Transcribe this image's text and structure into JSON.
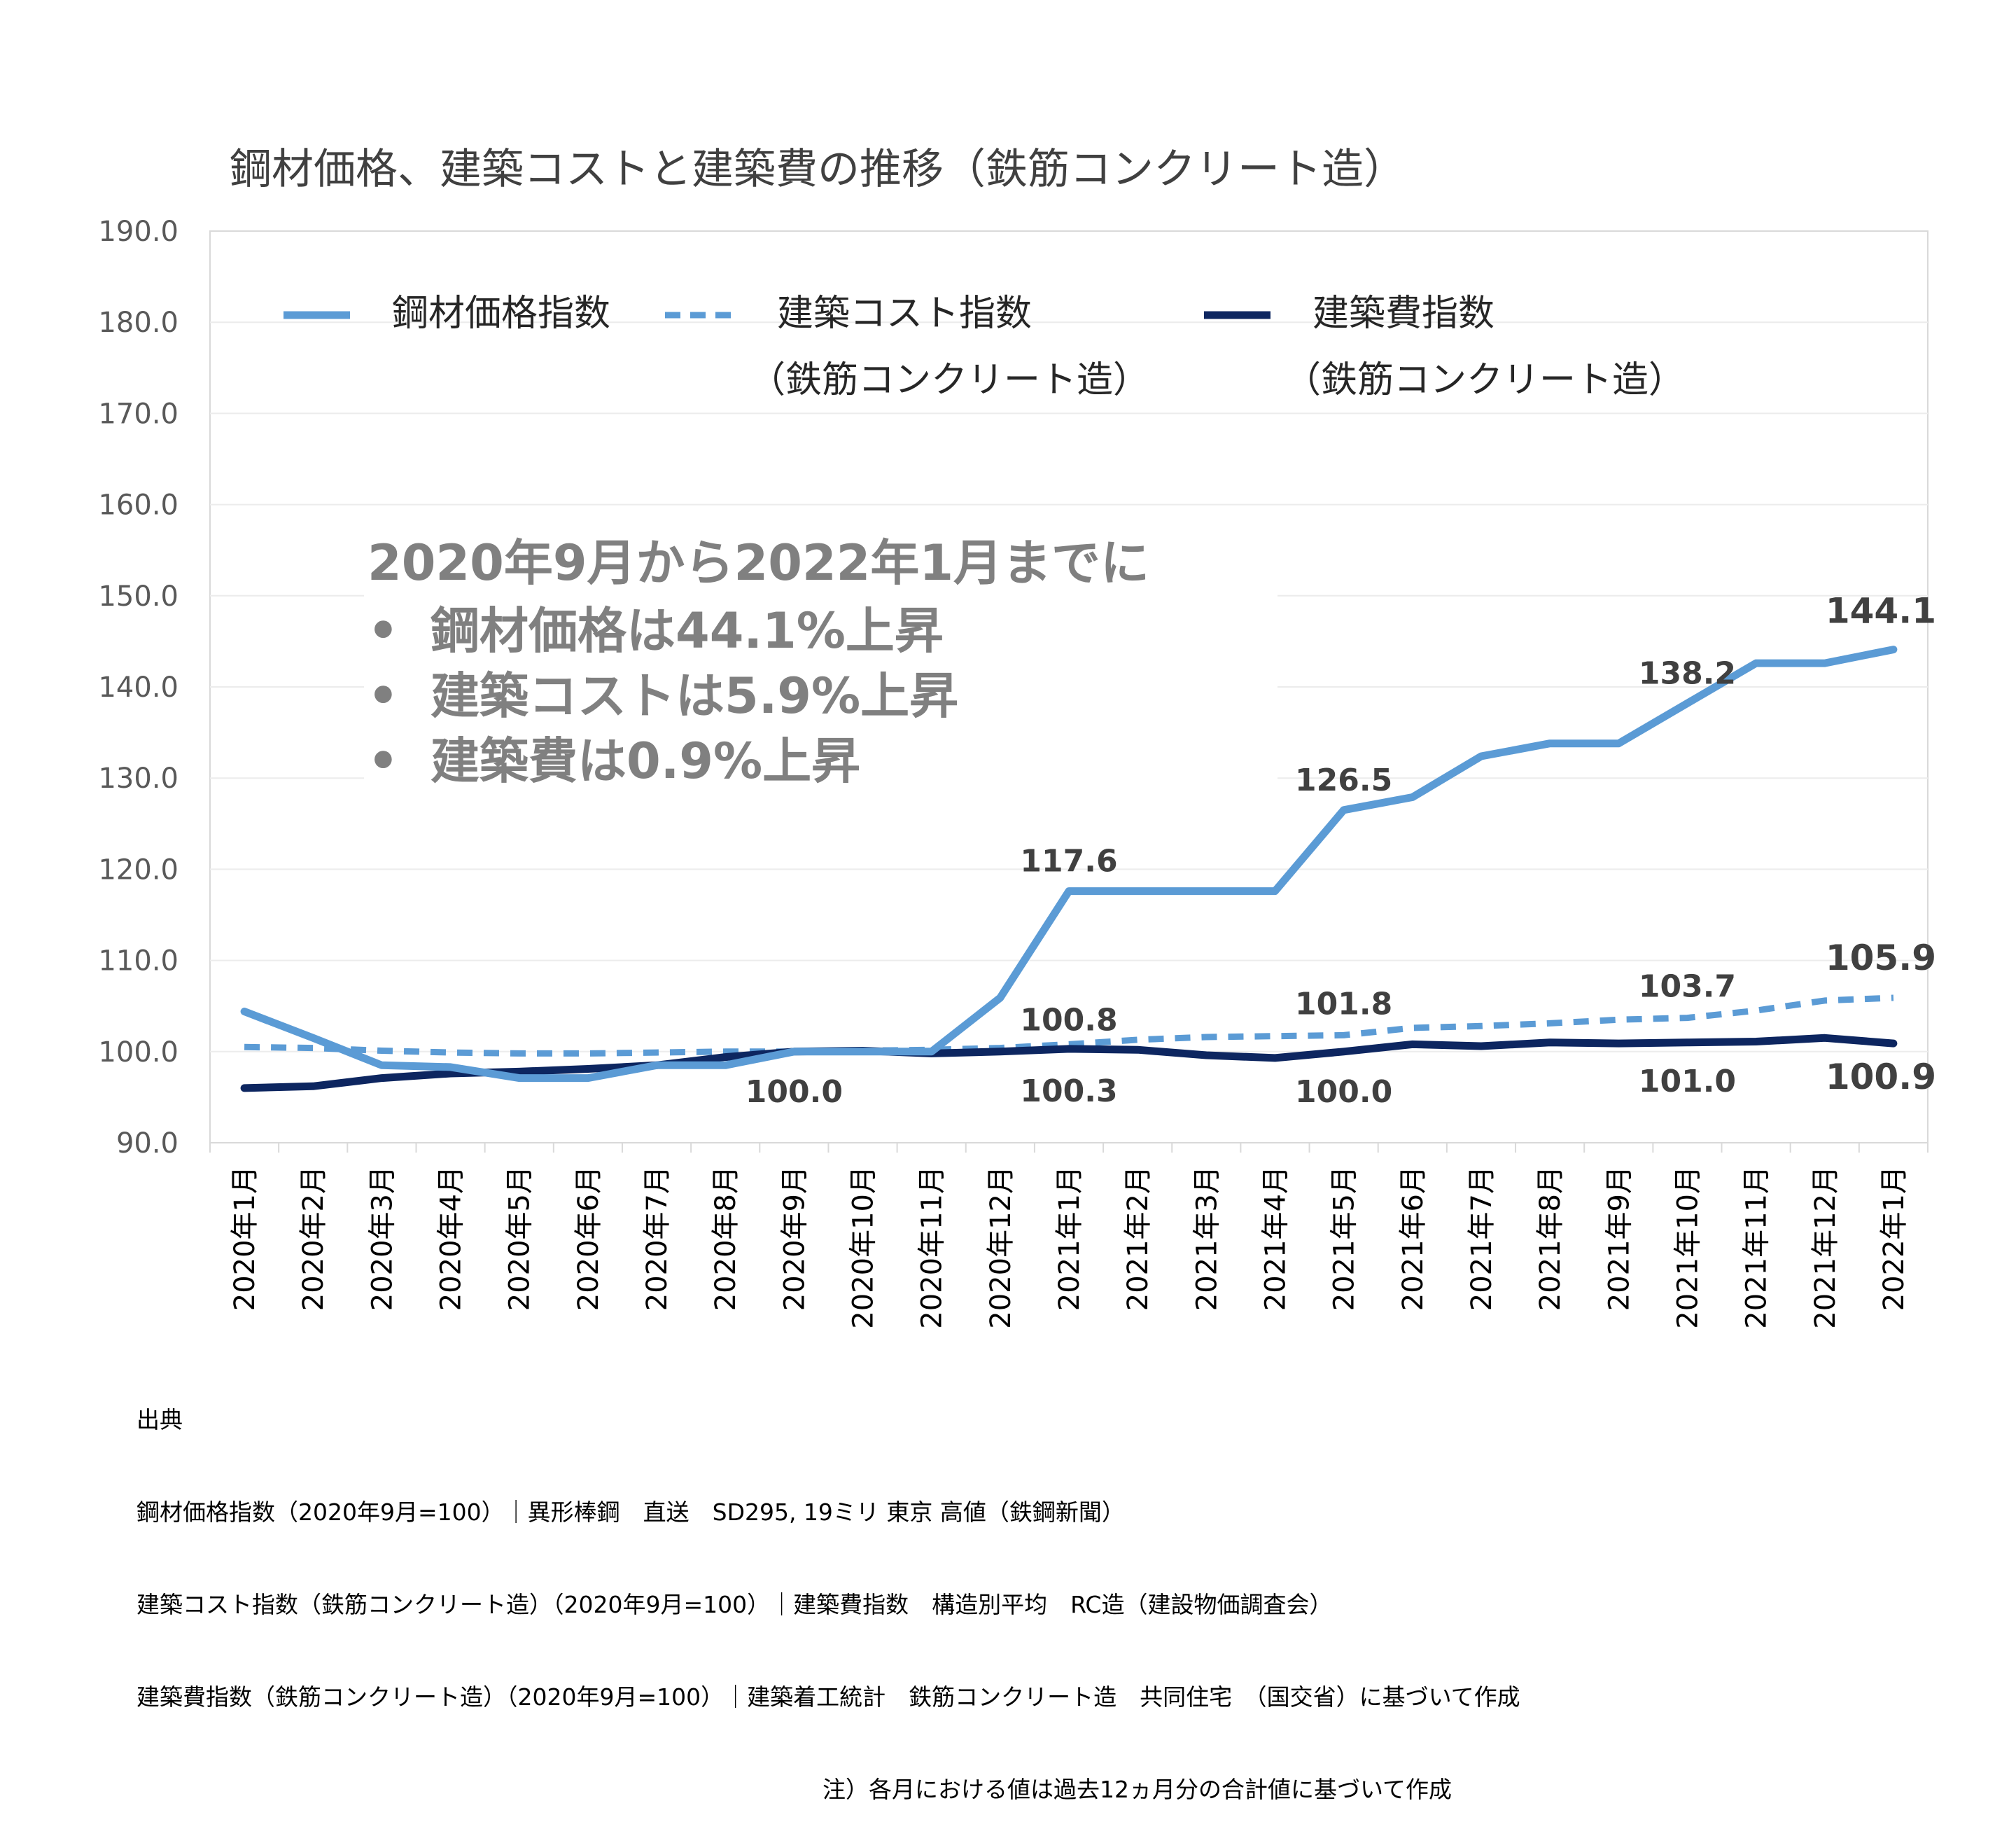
{
  "chart_data": {
    "type": "line",
    "title": "鋼材価格、建築コストと建築費の推移（鉄筋コンクリート造）",
    "ylim": [
      90,
      190
    ],
    "yticks": [
      "190.0",
      "180.0",
      "170.0",
      "160.0",
      "150.0",
      "140.0",
      "130.0",
      "120.0",
      "110.0",
      "100.0",
      "90.0"
    ],
    "grid": "horizontal",
    "legend_position": "top",
    "categories": [
      "2020年1月",
      "2020年2月",
      "2020年3月",
      "2020年4月",
      "2020年5月",
      "2020年6月",
      "2020年7月",
      "2020年8月",
      "2020年9月",
      "2020年10月",
      "2020年11月",
      "2020年12月",
      "2021年1月",
      "2021年2月",
      "2021年3月",
      "2021年4月",
      "2021年5月",
      "2021年6月",
      "2021年7月",
      "2021年8月",
      "2021年9月",
      "2021年10月",
      "2021年11月",
      "2021年12月",
      "2022年1月"
    ],
    "series": [
      {
        "name": "鋼材価格指数",
        "name_line2": "",
        "color": "#5B9BD5",
        "style": "solid",
        "values": [
          104.4,
          101.5,
          98.5,
          98.3,
          97.1,
          97.1,
          98.5,
          98.5,
          100.0,
          100.0,
          100.0,
          105.9,
          117.6,
          117.6,
          117.6,
          117.6,
          126.5,
          127.9,
          132.4,
          133.8,
          133.8,
          138.2,
          142.6,
          142.6,
          144.1
        ]
      },
      {
        "name": "建築コスト指数",
        "name_line2": "（鉄筋コンクリート造）",
        "color": "#5B9BD5",
        "style": "dashed",
        "values": [
          100.5,
          100.4,
          100.1,
          99.9,
          99.8,
          99.8,
          99.9,
          100.0,
          100.0,
          100.1,
          100.2,
          100.4,
          100.8,
          101.3,
          101.6,
          101.7,
          101.8,
          102.6,
          102.8,
          103.1,
          103.5,
          103.7,
          104.5,
          105.6,
          105.9
        ]
      },
      {
        "name": "建築費指数",
        "name_line2": "（鉄筋コンクリート造）",
        "color": "#0D2660",
        "style": "solid",
        "values": [
          96.0,
          96.2,
          97.1,
          97.6,
          97.8,
          98.1,
          98.5,
          99.4,
          100.0,
          100.1,
          99.8,
          100.0,
          100.3,
          100.2,
          99.6,
          99.3,
          100.0,
          100.8,
          100.6,
          101.0,
          100.9,
          101.0,
          101.1,
          101.5,
          100.9
        ]
      }
    ],
    "data_labels": [
      {
        "series": 0,
        "index": 12,
        "text": "117.6"
      },
      {
        "series": 0,
        "index": 16,
        "text": "126.5"
      },
      {
        "series": 0,
        "index": 21,
        "text": "138.2"
      },
      {
        "series": 0,
        "index": 24,
        "text": "144.1"
      },
      {
        "series": 1,
        "index": 12,
        "text": "100.8"
      },
      {
        "series": 1,
        "index": 16,
        "text": "101.8"
      },
      {
        "series": 1,
        "index": 21,
        "text": "103.7"
      },
      {
        "series": 1,
        "index": 24,
        "text": "105.9"
      },
      {
        "series": 2,
        "index": 8,
        "text": "100.0"
      },
      {
        "series": 2,
        "index": 12,
        "text": "100.3"
      },
      {
        "series": 2,
        "index": 16,
        "text": "100.0"
      },
      {
        "series": 2,
        "index": 21,
        "text": "101.0"
      },
      {
        "series": 2,
        "index": 24,
        "text": "100.9"
      }
    ],
    "annotation": {
      "heading": "2020年9月から2022年1月までに",
      "bullets": [
        "鋼材価格は44.1%上昇",
        "建築コストは5.9%上昇",
        "建築費は0.9%上昇"
      ]
    }
  },
  "source": {
    "heading": "出典",
    "lines": [
      "鋼材価格指数（2020年9月=100）｜異形棒鋼　直送　SD295, 19ミリ 東京 高値（鉄鋼新聞）",
      "建築コスト指数（鉄筋コンクリート造）（2020年9月=100）｜建築費指数　構造別平均　RC造（建設物価調査会）",
      "建築費指数（鉄筋コンクリート造）（2020年9月=100）｜建築着工統計　鉄筋コンクリート造　共同住宅　（国交省）に基づいて作成"
    ],
    "note": "注）各月における値は過去12ヵ月分の合計値に基づいて作成"
  }
}
